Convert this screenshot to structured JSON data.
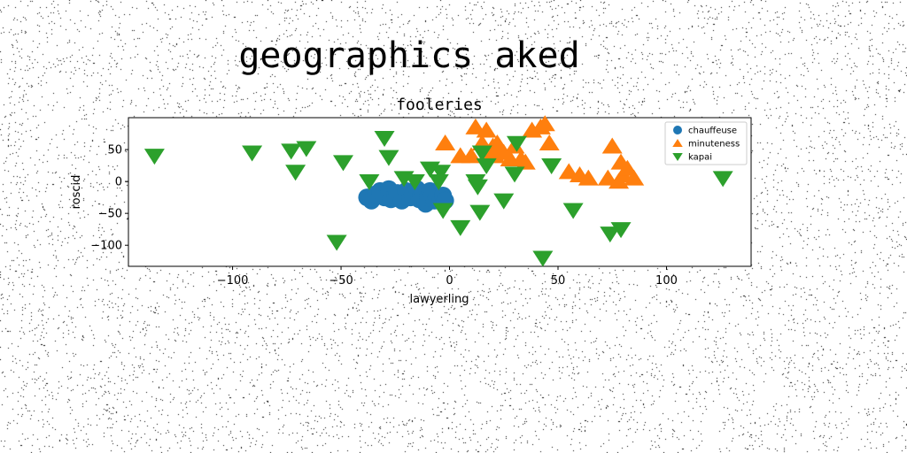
{
  "page_title": "geographics aked",
  "chart_data": {
    "type": "scatter",
    "title": "fooleries",
    "xlabel": "lawyerling",
    "ylabel": "roscid",
    "xlim": [
      -148,
      139
    ],
    "ylim": [
      -133,
      100
    ],
    "xticks": [
      -100,
      -50,
      0,
      50,
      100
    ],
    "yticks": [
      50,
      0,
      -50,
      -100
    ],
    "legend_position": "top-right",
    "grid": false,
    "series": [
      {
        "name": "chauffeuse",
        "marker": "circle",
        "color": "#1f77b4",
        "points": [
          [
            -38,
            -25
          ],
          [
            -36,
            -30
          ],
          [
            -34,
            -20
          ],
          [
            -32,
            -15
          ],
          [
            -30,
            -25
          ],
          [
            -28,
            -12
          ],
          [
            -27,
            -28
          ],
          [
            -25,
            -22
          ],
          [
            -24,
            -18
          ],
          [
            -22,
            -30
          ],
          [
            -20,
            -15
          ],
          [
            -18,
            -25
          ],
          [
            -17,
            -20
          ],
          [
            -15,
            -12
          ],
          [
            -14,
            -28
          ],
          [
            -13,
            -22
          ],
          [
            -12,
            -18
          ],
          [
            -11,
            -35
          ],
          [
            -10,
            -25
          ],
          [
            -9,
            -15
          ],
          [
            -8,
            -20
          ],
          [
            -7,
            -30
          ],
          [
            -6,
            -25
          ],
          [
            -4,
            -28
          ],
          [
            -3,
            -22
          ],
          [
            -2,
            -30
          ]
        ]
      },
      {
        "name": "minuteness",
        "marker": "triangle-up",
        "color": "#ff7f0e",
        "points": [
          [
            -2,
            60
          ],
          [
            5,
            40
          ],
          [
            10,
            40
          ],
          [
            12,
            85
          ],
          [
            15,
            60
          ],
          [
            17,
            80
          ],
          [
            18,
            45
          ],
          [
            20,
            55
          ],
          [
            21,
            40
          ],
          [
            22,
            60
          ],
          [
            25,
            45
          ],
          [
            28,
            35
          ],
          [
            30,
            55
          ],
          [
            33,
            35
          ],
          [
            35,
            30
          ],
          [
            38,
            80
          ],
          [
            42,
            85
          ],
          [
            44,
            90
          ],
          [
            46,
            60
          ],
          [
            55,
            15
          ],
          [
            60,
            10
          ],
          [
            64,
            5
          ],
          [
            73,
            5
          ],
          [
            75,
            55
          ],
          [
            78,
            0
          ],
          [
            79,
            30
          ],
          [
            80,
            10
          ],
          [
            82,
            20
          ],
          [
            85,
            5
          ]
        ]
      },
      {
        "name": "kapai",
        "marker": "triangle-down",
        "color": "#2ca02c",
        "points": [
          [
            -136,
            40
          ],
          [
            -91,
            45
          ],
          [
            -73,
            48
          ],
          [
            -71,
            15
          ],
          [
            -66,
            52
          ],
          [
            -49,
            30
          ],
          [
            -52,
            -95
          ],
          [
            -37,
            0
          ],
          [
            -30,
            68
          ],
          [
            -28,
            38
          ],
          [
            -21,
            5
          ],
          [
            -16,
            0
          ],
          [
            -9,
            20
          ],
          [
            -5,
            0
          ],
          [
            -4,
            15
          ],
          [
            -3,
            -45
          ],
          [
            5,
            -72
          ],
          [
            12,
            0
          ],
          [
            13,
            -8
          ],
          [
            14,
            -48
          ],
          [
            15,
            45
          ],
          [
            17,
            25
          ],
          [
            25,
            -30
          ],
          [
            30,
            12
          ],
          [
            31,
            60
          ],
          [
            43,
            -120
          ],
          [
            47,
            25
          ],
          [
            57,
            -45
          ],
          [
            74,
            -82
          ],
          [
            79,
            -75
          ],
          [
            126,
            5
          ]
        ]
      }
    ]
  }
}
